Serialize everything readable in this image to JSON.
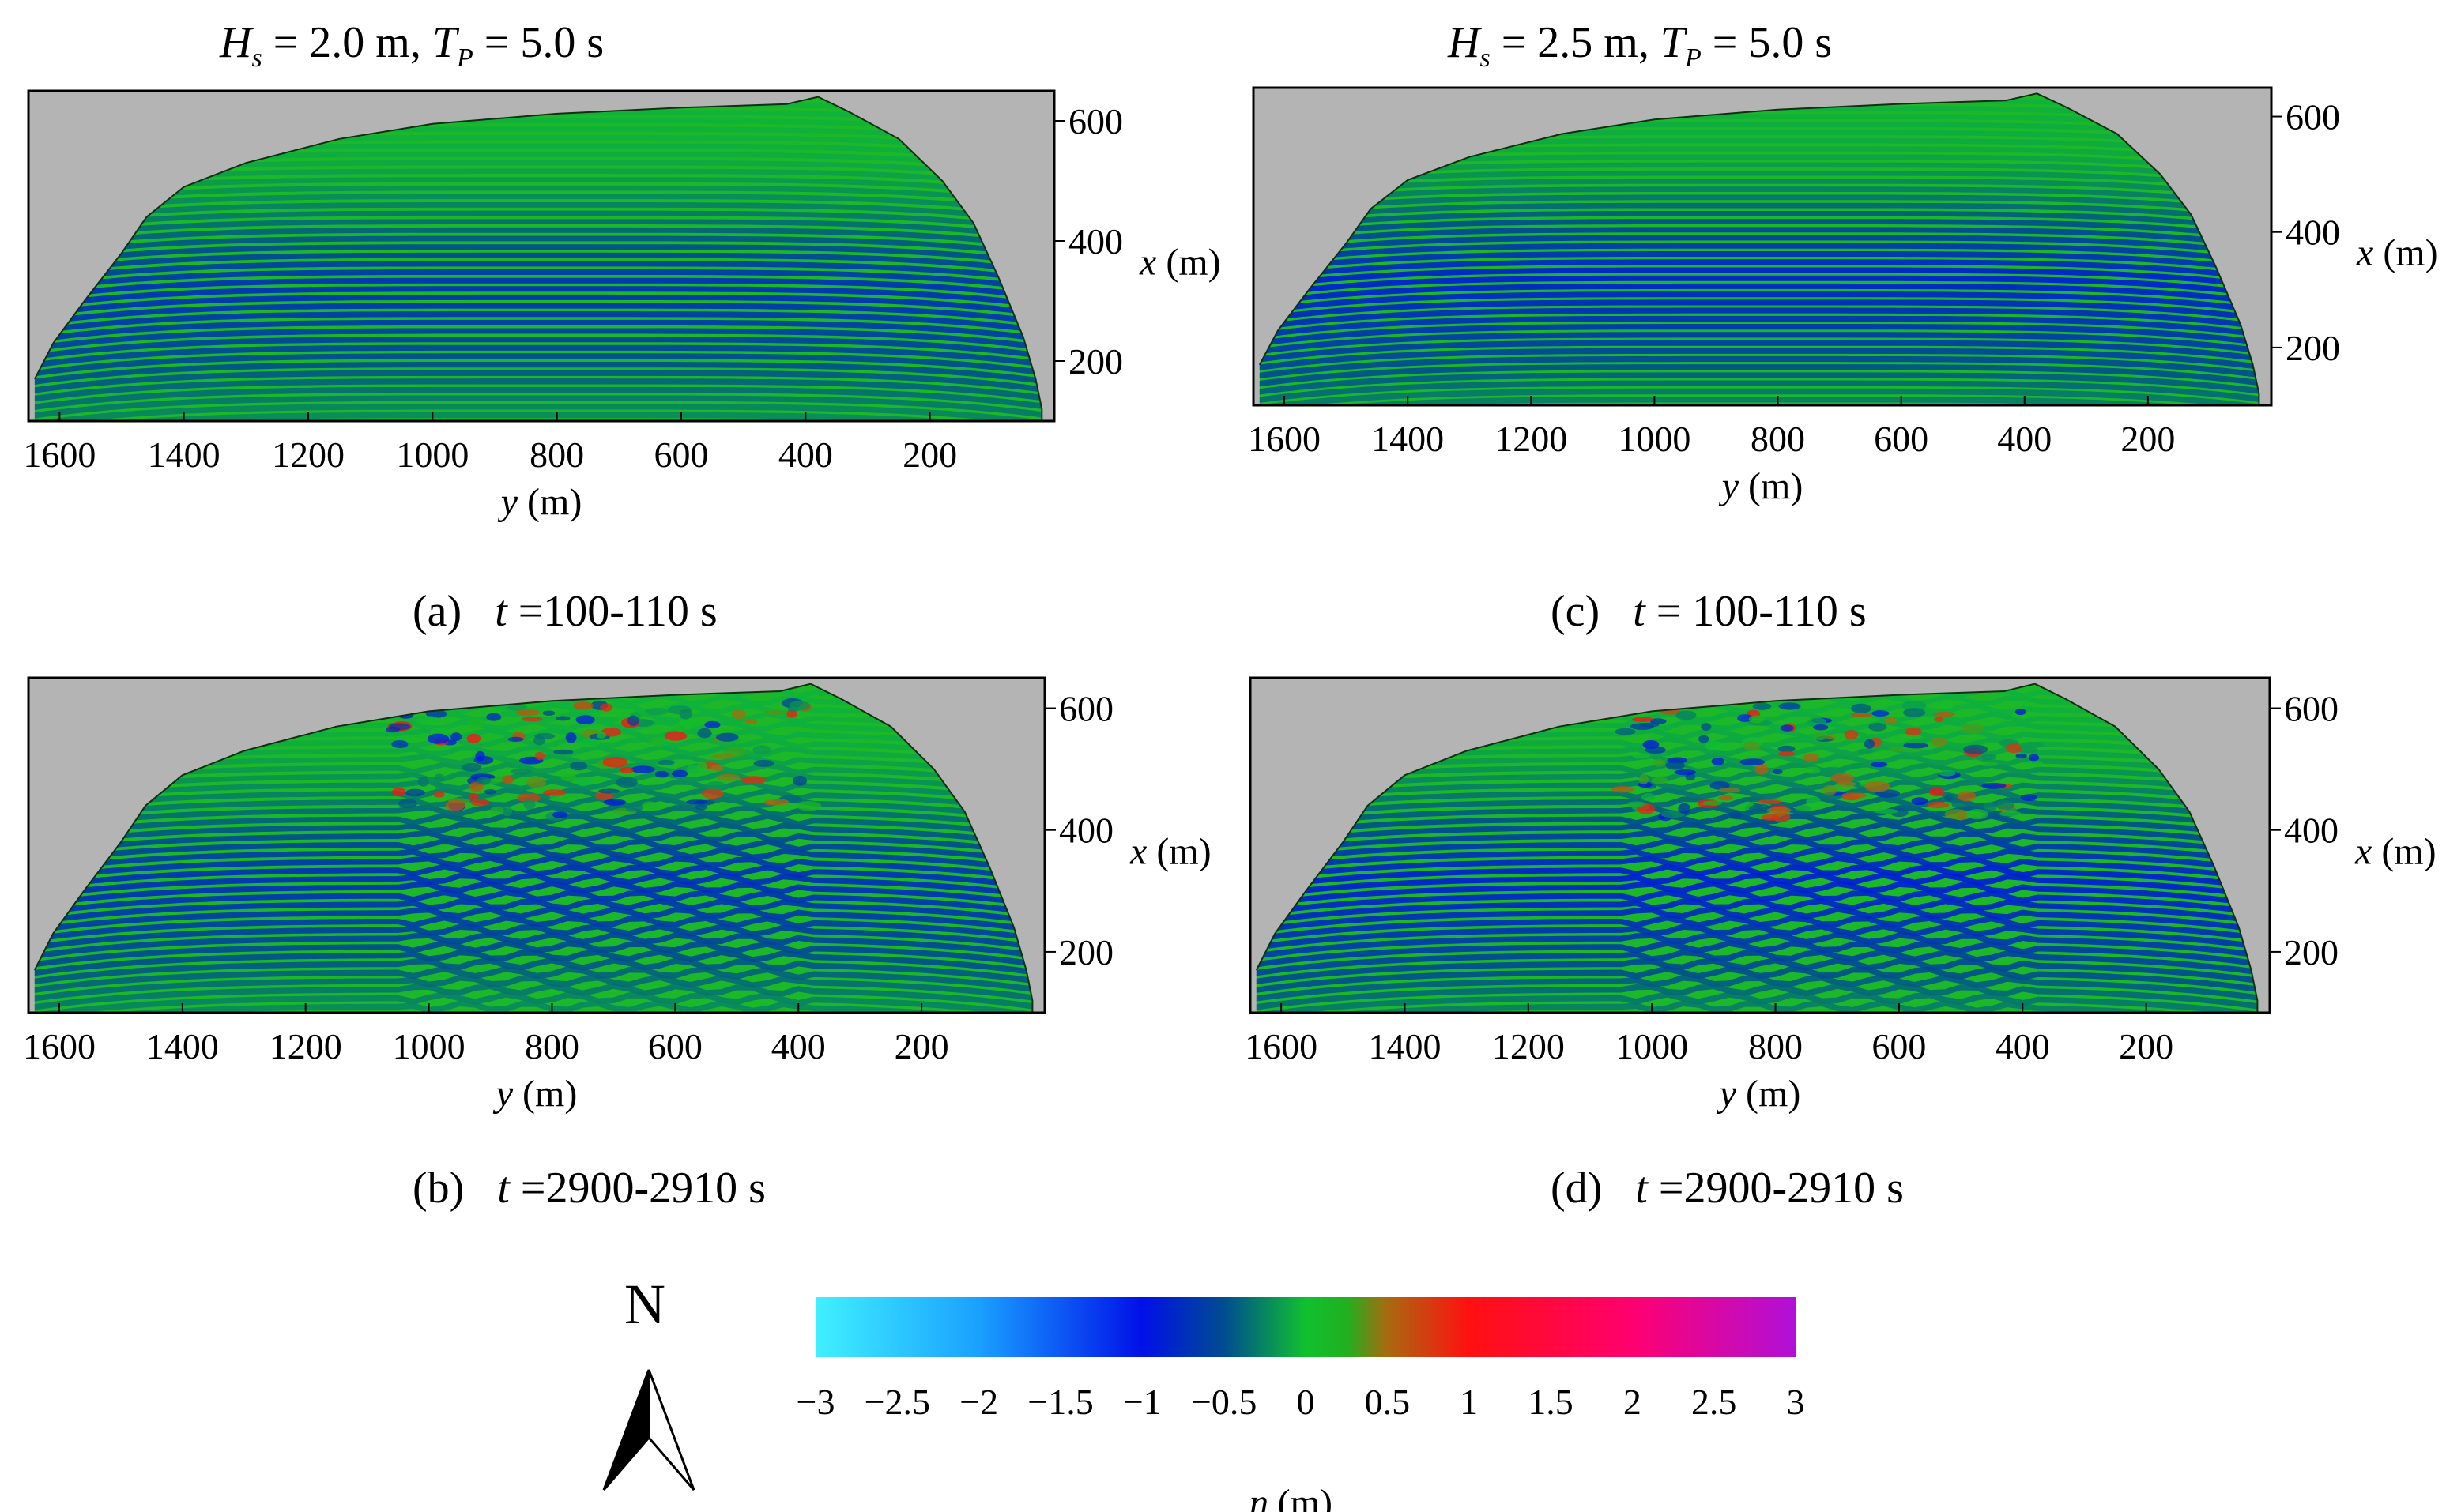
{
  "figure": {
    "column_titles": [
      {
        "H_sym": "H",
        "H_sub": "s",
        "H_val": " = 2.0 m, ",
        "T_sym": "T",
        "T_sub": "P",
        "T_val": " = 5.0 s"
      },
      {
        "H_sym": "H",
        "H_sub": "s",
        "H_val": " = 2.5 m, ",
        "T_sym": "T",
        "T_sub": "P",
        "T_val": " = 5.0 s"
      }
    ],
    "north_label": "N",
    "colorbar": {
      "ticks": [
        "−3",
        "−2.5",
        "−2",
        "−1.5",
        "−1",
        "−0.5",
        "0",
        "0.5",
        "1",
        "1.5",
        "2",
        "2.5",
        "3"
      ],
      "label_sym": "η",
      "label_unit": " (m)",
      "range": [
        -3,
        3
      ],
      "colors": [
        {
          "v": -3.0,
          "c": "#40f0ff"
        },
        {
          "v": -2.0,
          "c": "#1aa0ff"
        },
        {
          "v": -1.0,
          "c": "#0010e8"
        },
        {
          "v": -0.5,
          "c": "#004c90"
        },
        {
          "v": 0.0,
          "c": "#10c030"
        },
        {
          "v": 0.25,
          "c": "#20b020"
        },
        {
          "v": 0.5,
          "c": "#a86a10"
        },
        {
          "v": 1.0,
          "c": "#ff1010"
        },
        {
          "v": 2.0,
          "c": "#ff0070"
        },
        {
          "v": 3.0,
          "c": "#b010d8"
        }
      ]
    }
  },
  "chart_data": [
    {
      "panel": "a",
      "type": "heatmap",
      "caption": {
        "label": "(a)",
        "t": "t",
        "range": " =100-110 s"
      },
      "xlabel": {
        "sym": "y",
        "unit": " (m)"
      },
      "ylabel": {
        "sym": "x",
        "unit": " (m)"
      },
      "x_ticks": [
        "1600",
        "1400",
        "1200",
        "1000",
        "800",
        "600",
        "400",
        "200"
      ],
      "y_ticks": [
        "600",
        "400",
        "200"
      ],
      "xlim": [
        1650,
        0
      ],
      "ylim": [
        100,
        650
      ],
      "variable": "η (m)",
      "color_range": [
        -3,
        3
      ],
      "dominant_pattern": "alongshore-uniform crests, deep blue troughs near x ≈ 330 m"
    },
    {
      "panel": "b",
      "type": "heatmap",
      "caption": {
        "label": "(b)",
        "t": "t",
        "range": " =2900-2910 s"
      },
      "xlabel": {
        "sym": "y",
        "unit": " (m)"
      },
      "ylabel": {
        "sym": "x",
        "unit": " (m)"
      },
      "x_ticks": [
        "1600",
        "1400",
        "1200",
        "1000",
        "800",
        "600",
        "400",
        "200"
      ],
      "y_ticks": [
        "600",
        "400",
        "200"
      ],
      "xlim": [
        1650,
        0
      ],
      "ylim": [
        100,
        650
      ],
      "variable": "η (m)",
      "color_range": [
        -3,
        3
      ],
      "dominant_pattern": "alongshore-varying crests between y ≈ 400–1000 m"
    },
    {
      "panel": "c",
      "type": "heatmap",
      "caption": {
        "label": "(c)",
        "t": "t",
        "range": " = 100-110 s"
      },
      "xlabel": {
        "sym": "y",
        "unit": " (m)"
      },
      "ylabel": {
        "sym": "x",
        "unit": " (m)"
      },
      "x_ticks": [
        "1600",
        "1400",
        "1200",
        "1000",
        "800",
        "600",
        "400",
        "200"
      ],
      "y_ticks": [
        "600",
        "400",
        "200"
      ],
      "xlim": [
        1650,
        0
      ],
      "ylim": [
        100,
        650
      ],
      "variable": "η (m)",
      "color_range": [
        -3,
        3
      ],
      "dominant_pattern": "alongshore-uniform crests, stronger troughs near x ≈ 320 m"
    },
    {
      "panel": "d",
      "type": "heatmap",
      "caption": {
        "label": "(d)",
        "t": "t",
        "range": " =2900-2910 s"
      },
      "xlabel": {
        "sym": "y",
        "unit": " (m)"
      },
      "ylabel": {
        "sym": "x",
        "unit": " (m)"
      },
      "x_ticks": [
        "1600",
        "1400",
        "1200",
        "1000",
        "800",
        "600",
        "400",
        "200"
      ],
      "y_ticks": [
        "600",
        "400",
        "200"
      ],
      "xlim": [
        1650,
        0
      ],
      "ylim": [
        100,
        650
      ],
      "variable": "η (m)",
      "color_range": [
        -3,
        3
      ],
      "dominant_pattern": "alongshore-varying crests between y ≈ 400–1000 m"
    }
  ]
}
